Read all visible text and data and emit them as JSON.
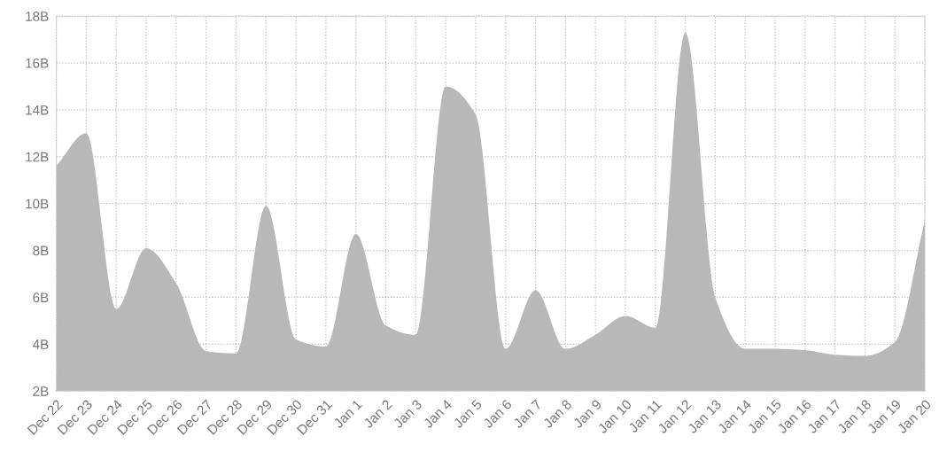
{
  "chart_data": {
    "type": "area",
    "categories": [
      "Dec 22",
      "Dec 23",
      "Dec 24",
      "Dec 25",
      "Dec 26",
      "Dec 27",
      "Dec 28",
      "Dec 29",
      "Dec 30",
      "Dec 31",
      "Jan 1",
      "Jan 2",
      "Jan 3",
      "Jan 4",
      "Jan 5",
      "Jan 6",
      "Jan 7",
      "Jan 8",
      "Jan 9",
      "Jan 10",
      "Jan 11",
      "Jan 12",
      "Jan 13",
      "Jan 14",
      "Jan 15",
      "Jan 16",
      "Jan 17",
      "Jan 18",
      "Jan 19",
      "Jan 20"
    ],
    "series": [
      {
        "color": "#b8b8b8",
        "values": [
          11.6,
          13.0,
          5.5,
          8.1,
          6.6,
          3.7,
          3.6,
          9.9,
          4.2,
          3.9,
          8.7,
          4.8,
          4.4,
          15.0,
          13.8,
          3.8,
          6.3,
          3.8,
          4.4,
          5.2,
          4.7,
          17.3,
          6.0,
          3.8,
          3.8,
          3.75,
          3.55,
          3.5,
          4.1,
          9.3
        ]
      }
    ],
    "ylim": [
      2,
      18
    ],
    "yticks": [
      {
        "value": 2,
        "label": "2B"
      },
      {
        "value": 4,
        "label": "4B"
      },
      {
        "value": 6,
        "label": "6B"
      },
      {
        "value": 8,
        "label": "8B"
      },
      {
        "value": 10,
        "label": "10B"
      },
      {
        "value": 12,
        "label": "12B"
      },
      {
        "value": 14,
        "label": "14B"
      },
      {
        "value": 16,
        "label": "16B"
      },
      {
        "value": 18,
        "label": "18B"
      }
    ],
    "grid": true,
    "legend": false
  }
}
